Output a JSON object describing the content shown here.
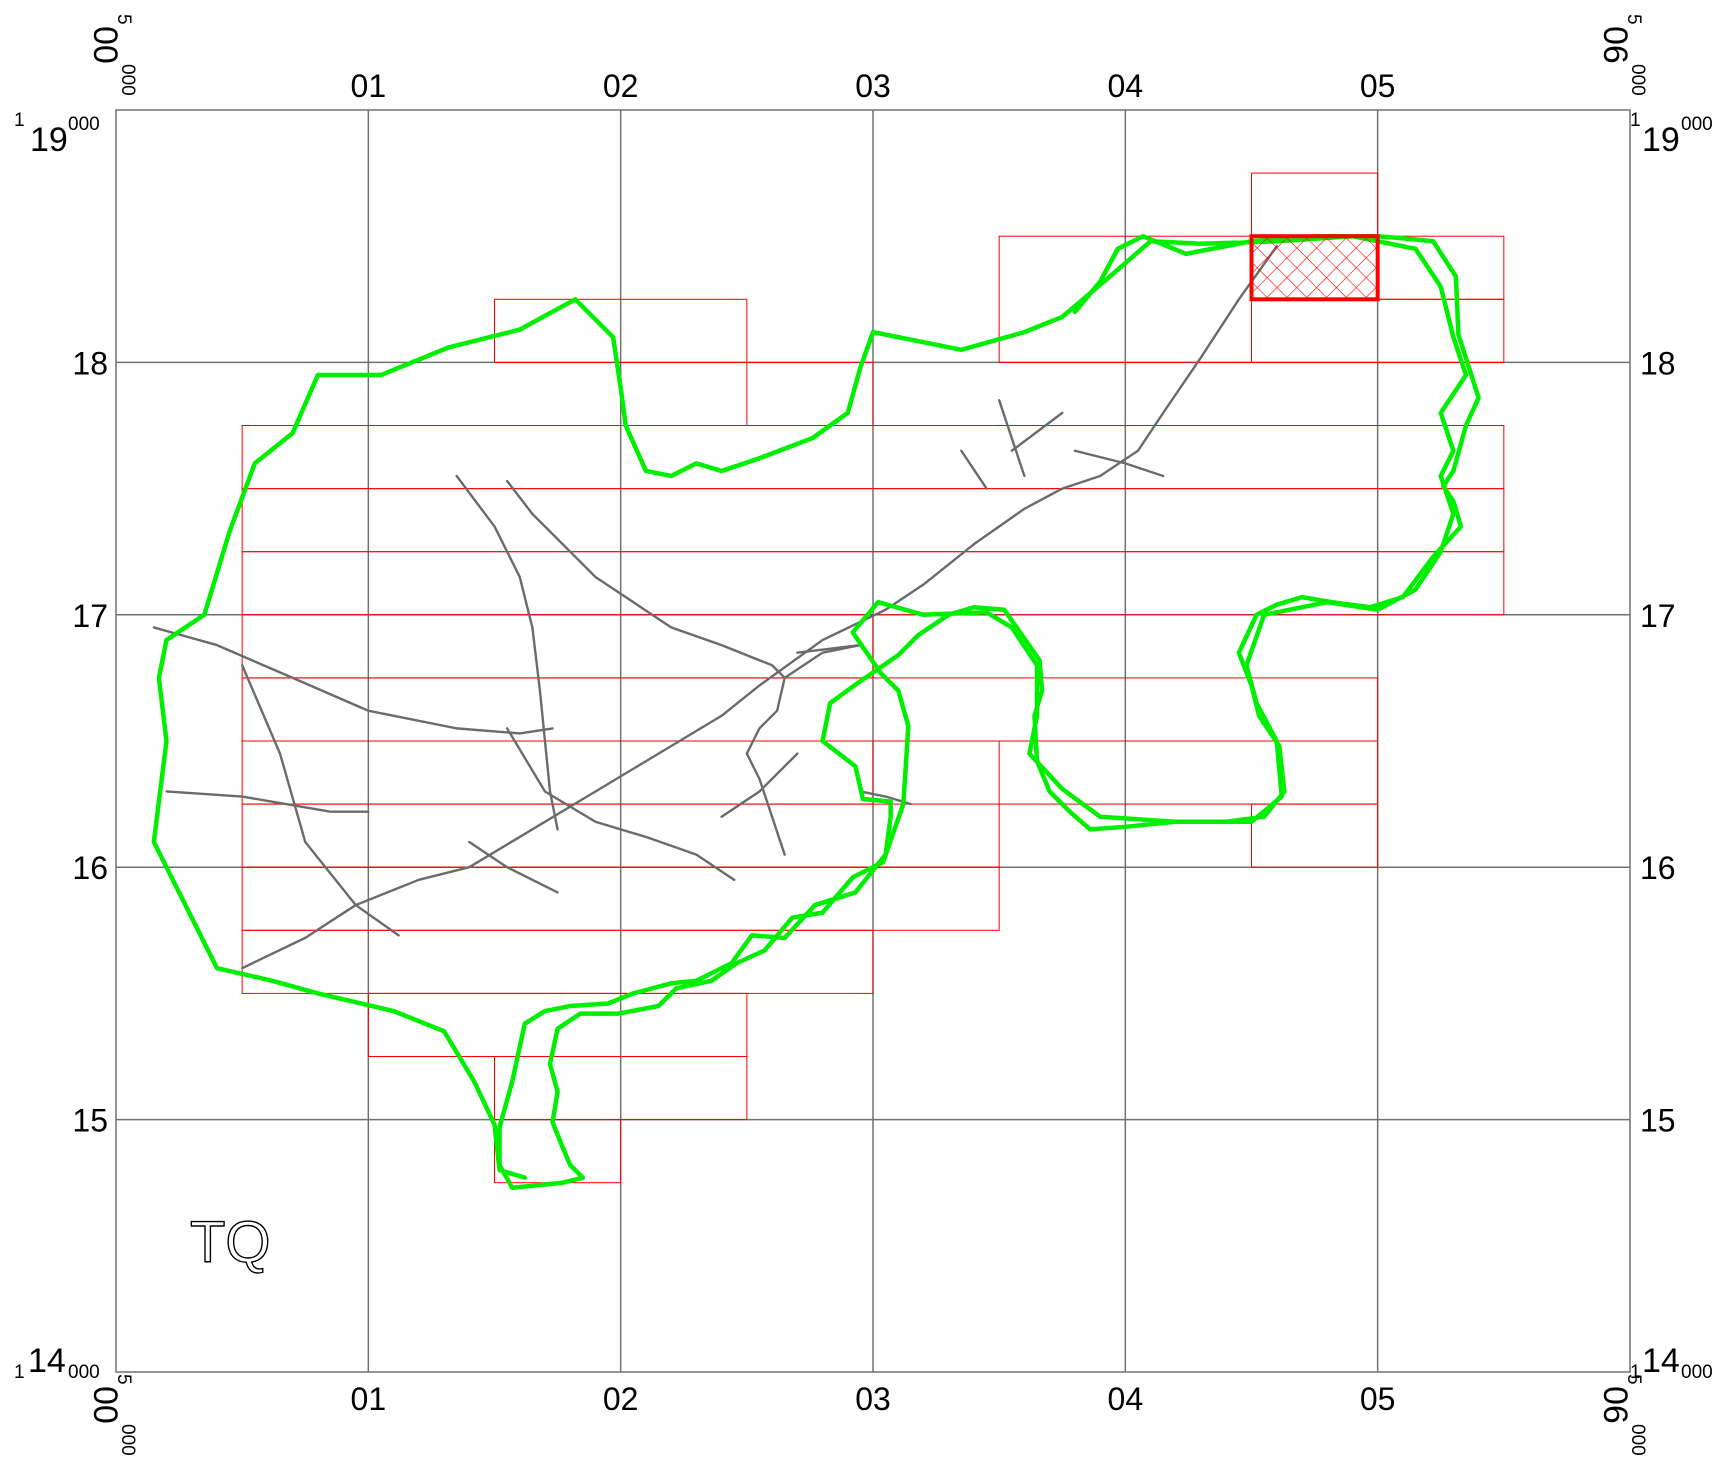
{
  "grid_square": "TQ",
  "x_ticks": [
    "01",
    "02",
    "03",
    "04",
    "05"
  ],
  "y_ticks": [
    "15",
    "16",
    "17",
    "18"
  ],
  "corner_labels": {
    "left_easting": {
      "sup": "5",
      "main": "00",
      "sub": "000"
    },
    "right_easting": {
      "sup": "5",
      "main": "06",
      "sub": "000"
    },
    "top_northing": {
      "sup": "1",
      "main": "19",
      "sub": "000"
    },
    "bottom_northing": {
      "sup": "1",
      "main": "14",
      "sub": "000"
    }
  },
  "colors": {
    "grid": "#707070",
    "boundary": "#00ee00",
    "roads": "#6b6b6b",
    "sheets": "#ff0000",
    "selected": "#ff0000"
  },
  "chart_data": {
    "type": "map",
    "extent_km": {
      "easting": [
        500,
        506
      ],
      "northing": [
        114,
        119
      ]
    },
    "gridlines_km": {
      "easting": [
        501,
        502,
        503,
        504,
        505
      ],
      "northing": [
        115,
        116,
        117,
        118
      ]
    },
    "tile_rows": [
      {
        "n": [
          118,
          118.25
        ],
        "e": [
          [
            504.5,
            505.5
          ]
        ]
      },
      {
        "n": [
          117.75,
          118
        ],
        "e": [
          [
            502.5,
            503
          ]
        ]
      },
      {
        "n": [
          117.5,
          117.75
        ],
        "e": [
          [
            500.5,
            505.5
          ]
        ]
      },
      {
        "n": [
          117.25,
          117.5
        ],
        "e": [
          [
            500.5,
            505.5
          ]
        ]
      },
      {
        "n": [
          117,
          117.25
        ],
        "e": [
          [
            500.5,
            505.5
          ]
        ]
      },
      {
        "n": [
          116.75,
          117
        ],
        "e": [
          [
            500.5,
            503
          ]
        ]
      },
      {
        "n": [
          116.5,
          116.75
        ],
        "e": [
          [
            500.5,
            505
          ]
        ]
      },
      {
        "n": [
          116.25,
          116.5
        ],
        "e": [
          [
            500.5,
            503
          ],
          [
            503.5,
            505
          ]
        ]
      },
      {
        "n": [
          116,
          116.25
        ],
        "e": [
          [
            500.5,
            503.5
          ],
          [
            504.5,
            505
          ]
        ]
      },
      {
        "n": [
          115.75,
          116
        ],
        "e": [
          [
            500.5,
            503.5
          ]
        ]
      },
      {
        "n": [
          115.5,
          115.75
        ],
        "e": [
          [
            500.5,
            503
          ]
        ]
      },
      {
        "n": [
          115.25,
          115.5
        ],
        "e": [
          [
            501,
            502.5
          ]
        ]
      },
      {
        "n": [
          115,
          115.25
        ],
        "e": [
          [
            501.5,
            502.5
          ]
        ]
      },
      {
        "n": [
          114.75,
          115
        ],
        "e": [
          [
            501.5,
            502
          ]
        ]
      }
    ],
    "tile_rects": [
      {
        "e": [
          501.5,
          502.5
        ],
        "n": [
          118,
          118.25
        ]
      },
      {
        "e": [
          503.5,
          504.5
        ],
        "n": [
          118,
          118.5
        ]
      },
      {
        "e": [
          504.5,
          505
        ],
        "n": [
          118.5,
          118.75
        ]
      },
      {
        "e": [
          505,
          505.5
        ],
        "n": [
          118.25,
          118.5
        ]
      }
    ],
    "selected_tile": {
      "e": [
        504.5,
        505
      ],
      "n": [
        118.25,
        118.5
      ]
    },
    "boundary": [
      [
        503.8,
        118.2
      ],
      [
        503.9,
        118.32
      ],
      [
        503.97,
        118.45
      ],
      [
        504.07,
        118.5
      ],
      [
        504.24,
        118.43
      ],
      [
        504.5,
        118.48
      ],
      [
        504.75,
        118.5
      ],
      [
        505,
        118.5
      ],
      [
        505.12,
        118.49
      ],
      [
        505.22,
        118.48
      ],
      [
        505.31,
        118.34
      ],
      [
        505.32,
        118.11
      ],
      [
        505.4,
        117.86
      ],
      [
        505.35,
        117.75
      ],
      [
        505.3,
        117.57
      ],
      [
        505.26,
        117.51
      ],
      [
        505.3,
        117.45
      ],
      [
        505.33,
        117.35
      ],
      [
        505.22,
        117.23
      ],
      [
        505.1,
        117.07
      ],
      [
        504.97,
        117.03
      ],
      [
        504.82,
        117.05
      ],
      [
        504.7,
        117.07
      ],
      [
        504.6,
        117.04
      ],
      [
        504.52,
        117.0
      ],
      [
        504.45,
        116.85
      ],
      [
        504.5,
        116.72
      ],
      [
        504.53,
        116.6
      ],
      [
        504.61,
        116.48
      ],
      [
        504.63,
        116.3
      ],
      [
        504.55,
        116.2
      ],
      [
        504.4,
        116.18
      ],
      [
        504.2,
        116.18
      ],
      [
        504.0,
        116.16
      ],
      [
        503.86,
        116.15
      ],
      [
        503.78,
        116.22
      ],
      [
        503.7,
        116.3
      ],
      [
        503.65,
        116.42
      ],
      [
        503.64,
        116.6
      ],
      [
        503.67,
        116.7
      ],
      [
        503.66,
        116.82
      ],
      [
        503.52,
        117.02
      ],
      [
        503.4,
        117.03
      ],
      [
        503.3,
        117.0
      ],
      [
        503.18,
        116.92
      ],
      [
        503.1,
        116.84
      ],
      [
        502.94,
        116.73
      ],
      [
        502.83,
        116.65
      ],
      [
        502.8,
        116.5
      ],
      [
        502.93,
        116.4
      ],
      [
        502.96,
        116.27
      ],
      [
        503.07,
        116.26
      ],
      [
        503.07,
        116.2
      ],
      [
        503.05,
        116.05
      ],
      [
        502.93,
        115.9
      ],
      [
        502.77,
        115.85
      ],
      [
        502.65,
        115.72
      ],
      [
        502.52,
        115.73
      ],
      [
        502.44,
        115.62
      ],
      [
        502.3,
        115.55
      ],
      [
        502.2,
        115.54
      ],
      [
        502.05,
        115.5
      ],
      [
        501.95,
        115.46
      ],
      [
        501.8,
        115.45
      ],
      [
        501.7,
        115.43
      ],
      [
        501.62,
        115.38
      ],
      [
        501.57,
        115.15
      ],
      [
        501.52,
        114.97
      ],
      [
        501.52,
        114.82
      ],
      [
        501.57,
        114.73
      ],
      [
        501.77,
        114.75
      ],
      [
        501.85,
        114.77
      ],
      [
        501.8,
        114.82
      ],
      [
        501.77,
        114.89
      ],
      [
        501.73,
        114.99
      ],
      [
        501.75,
        115.11
      ],
      [
        501.72,
        115.22
      ],
      [
        501.75,
        115.36
      ],
      [
        501.84,
        115.42
      ],
      [
        501.99,
        115.42
      ],
      [
        502.15,
        115.45
      ],
      [
        502.22,
        115.52
      ],
      [
        502.36,
        115.55
      ],
      [
        502.46,
        115.62
      ],
      [
        502.57,
        115.67
      ],
      [
        502.68,
        115.8
      ],
      [
        502.8,
        115.82
      ],
      [
        502.92,
        115.96
      ],
      [
        503.04,
        116.02
      ],
      [
        503.12,
        116.25
      ],
      [
        503.13,
        116.4
      ],
      [
        503.14,
        116.56
      ],
      [
        503.1,
        116.7
      ],
      [
        503.03,
        116.77
      ],
      [
        502.92,
        116.93
      ],
      [
        503.02,
        117.05
      ],
      [
        503.2,
        117.0
      ],
      [
        503.45,
        117.01
      ],
      [
        503.55,
        116.95
      ],
      [
        503.65,
        116.8
      ],
      [
        503.65,
        116.6
      ],
      [
        503.62,
        116.45
      ],
      [
        503.75,
        116.31
      ],
      [
        503.9,
        116.2
      ],
      [
        504.2,
        116.18
      ],
      [
        504.5,
        116.18
      ],
      [
        504.62,
        116.28
      ],
      [
        504.6,
        116.5
      ],
      [
        504.52,
        116.65
      ],
      [
        504.48,
        116.8
      ],
      [
        504.55,
        117.0
      ],
      [
        504.8,
        117.05
      ],
      [
        505.0,
        117.02
      ],
      [
        505.15,
        117.1
      ],
      [
        505.25,
        117.25
      ],
      [
        505.3,
        117.4
      ],
      [
        505.25,
        117.55
      ],
      [
        505.3,
        117.65
      ],
      [
        505.25,
        117.8
      ],
      [
        505.35,
        117.95
      ],
      [
        505.3,
        118.1
      ],
      [
        505.25,
        118.3
      ],
      [
        505.15,
        118.45
      ],
      [
        504.9,
        118.5
      ],
      [
        504.6,
        118.48
      ],
      [
        504.3,
        118.47
      ],
      [
        504.1,
        118.48
      ],
      [
        503.95,
        118.35
      ],
      [
        503.75,
        118.18
      ],
      [
        503.6,
        118.12
      ],
      [
        503.35,
        118.05
      ],
      [
        503.2,
        118.08
      ],
      [
        503.0,
        118.12
      ],
      [
        502.95,
        117.98
      ],
      [
        502.9,
        117.8
      ],
      [
        502.76,
        117.7
      ],
      [
        502.55,
        117.62
      ],
      [
        502.4,
        117.57
      ],
      [
        502.3,
        117.6
      ],
      [
        502.2,
        117.55
      ],
      [
        502.1,
        117.57
      ],
      [
        502.02,
        117.75
      ],
      [
        502.0,
        117.9
      ],
      [
        501.97,
        118.1
      ],
      [
        501.82,
        118.25
      ],
      [
        501.6,
        118.13
      ],
      [
        501.32,
        118.06
      ],
      [
        501.05,
        117.95
      ],
      [
        500.8,
        117.95
      ],
      [
        500.7,
        117.72
      ],
      [
        500.55,
        117.6
      ],
      [
        500.45,
        117.33
      ],
      [
        500.35,
        117.0
      ],
      [
        500.2,
        116.9
      ],
      [
        500.17,
        116.75
      ],
      [
        500.2,
        116.5
      ],
      [
        500.15,
        116.1
      ],
      [
        500.25,
        115.9
      ],
      [
        500.4,
        115.6
      ],
      [
        500.62,
        115.55
      ],
      [
        500.8,
        115.5
      ],
      [
        501.1,
        115.43
      ],
      [
        501.3,
        115.35
      ],
      [
        501.42,
        115.15
      ],
      [
        501.5,
        114.98
      ],
      [
        501.52,
        114.8
      ],
      [
        501.62,
        114.77
      ]
    ],
    "roads": [
      [
        [
          500.15,
          116.95
        ],
        [
          500.4,
          116.88
        ],
        [
          500.7,
          116.75
        ],
        [
          501.0,
          116.62
        ],
        [
          501.35,
          116.55
        ],
        [
          501.6,
          116.53
        ],
        [
          501.73,
          116.55
        ]
      ],
      [
        [
          500.2,
          116.3
        ],
        [
          500.5,
          116.28
        ],
        [
          500.85,
          116.22
        ],
        [
          501.0,
          116.22
        ]
      ],
      [
        [
          500.5,
          116.8
        ],
        [
          500.65,
          116.45
        ],
        [
          500.75,
          116.1
        ],
        [
          500.95,
          115.85
        ],
        [
          501.12,
          115.73
        ]
      ],
      [
        [
          500.5,
          115.6
        ],
        [
          500.75,
          115.72
        ],
        [
          500.95,
          115.85
        ],
        [
          501.2,
          115.95
        ],
        [
          501.4,
          116.0
        ],
        [
          501.6,
          116.12
        ],
        [
          501.9,
          116.3
        ],
        [
          502.15,
          116.45
        ],
        [
          502.4,
          116.6
        ],
        [
          502.55,
          116.72
        ],
        [
          502.8,
          116.9
        ],
        [
          503.05,
          117.02
        ],
        [
          503.2,
          117.12
        ],
        [
          503.4,
          117.28
        ],
        [
          503.6,
          117.42
        ],
        [
          503.75,
          117.5
        ],
        [
          503.9,
          117.55
        ],
        [
          504.05,
          117.65
        ],
        [
          504.15,
          117.8
        ],
        [
          504.3,
          118.02
        ],
        [
          504.45,
          118.25
        ],
        [
          504.6,
          118.46
        ]
      ],
      [
        [
          501.35,
          117.55
        ],
        [
          501.5,
          117.35
        ],
        [
          501.6,
          117.15
        ],
        [
          501.65,
          116.95
        ],
        [
          501.68,
          116.7
        ],
        [
          501.7,
          116.5
        ],
        [
          501.72,
          116.3
        ],
        [
          501.75,
          116.15
        ]
      ],
      [
        [
          501.55,
          117.53
        ],
        [
          501.65,
          117.4
        ],
        [
          501.75,
          117.3
        ],
        [
          501.9,
          117.15
        ],
        [
          502.05,
          117.05
        ],
        [
          502.2,
          116.95
        ],
        [
          502.4,
          116.88
        ],
        [
          502.6,
          116.8
        ],
        [
          502.65,
          116.75
        ],
        [
          502.62,
          116.62
        ],
        [
          502.55,
          116.55
        ],
        [
          502.5,
          116.45
        ],
        [
          502.55,
          116.35
        ],
        [
          502.6,
          116.2
        ],
        [
          502.65,
          116.05
        ]
      ],
      [
        [
          501.55,
          116.55
        ],
        [
          501.7,
          116.3
        ],
        [
          501.9,
          116.18
        ],
        [
          502.1,
          116.12
        ],
        [
          502.3,
          116.05
        ],
        [
          502.45,
          115.95
        ]
      ],
      [
        [
          501.4,
          116.1
        ],
        [
          501.55,
          116.0
        ],
        [
          501.75,
          115.9
        ]
      ],
      [
        [
          502.4,
          116.2
        ],
        [
          502.55,
          116.3
        ],
        [
          502.7,
          116.45
        ]
      ],
      [
        [
          502.65,
          116.75
        ],
        [
          502.8,
          116.85
        ],
        [
          502.95,
          116.88
        ]
      ],
      [
        [
          502.95,
          116.88
        ],
        [
          502.7,
          116.85
        ]
      ],
      [
        [
          502.95,
          116.3
        ],
        [
          503.05,
          116.28
        ],
        [
          503.15,
          116.25
        ]
      ],
      [
        [
          503.6,
          117.55
        ],
        [
          503.55,
          117.7
        ],
        [
          503.5,
          117.85
        ]
      ],
      [
        [
          503.55,
          117.65
        ],
        [
          503.75,
          117.8
        ]
      ],
      [
        [
          503.35,
          117.65
        ],
        [
          503.45,
          117.5
        ]
      ],
      [
        [
          503.8,
          117.65
        ],
        [
          504.0,
          117.6
        ],
        [
          504.15,
          117.55
        ]
      ]
    ]
  }
}
